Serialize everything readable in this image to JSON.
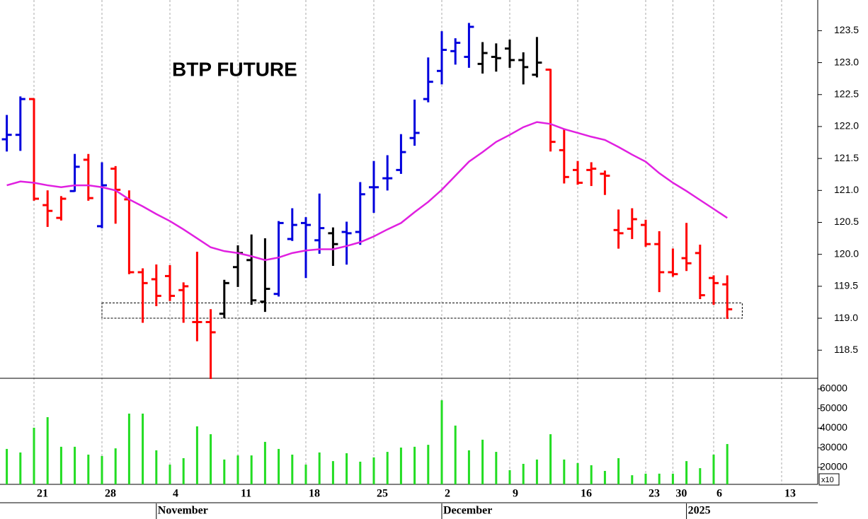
{
  "chart_data": [
    {
      "type": "ohlc",
      "title": "BTP FUTURE",
      "categories": [
        null,
        null,
        "21",
        null,
        null,
        null,
        null,
        "28",
        null,
        null,
        null,
        null,
        "4",
        null,
        null,
        null,
        null,
        "11",
        null,
        null,
        null,
        null,
        "18",
        null,
        null,
        null,
        null,
        "25",
        null,
        null,
        null,
        null,
        "2",
        null,
        null,
        null,
        null,
        "9",
        null,
        null,
        null,
        null,
        "16",
        null,
        null,
        null,
        null,
        "23",
        null,
        "30",
        null,
        null,
        "6",
        null,
        null,
        null,
        null,
        "13"
      ],
      "month_labels": [
        "November",
        "December",
        "2025"
      ],
      "open": [
        121.8,
        121.87,
        122.43,
        120.77,
        120.57,
        120.99,
        121.48,
        120.44,
        121.34,
        120.86,
        119.72,
        119.61,
        119.66,
        119.44,
        118.94,
        118.94,
        119.07,
        119.8,
        119.91,
        119.26,
        119.38,
        120.24,
        120.49,
        120.22,
        120.33,
        120.35,
        120.35,
        121.05,
        121.19,
        121.32,
        121.82,
        122.43,
        122.87,
        123.18,
        123.09,
        122.98,
        123.09,
        123.22,
        123.04,
        122.81,
        122.89,
        121.63,
        121.32,
        121.32,
        121.26,
        120.38,
        120.4,
        120.46,
        120.16,
        119.72,
        119.94,
        120.02,
        119.63,
        119.53,
        null,
        null,
        null,
        null
      ],
      "high": [
        122.17,
        122.46,
        122.43,
        120.99,
        120.9,
        121.56,
        121.56,
        121.43,
        121.37,
        120.99,
        119.77,
        119.83,
        119.82,
        119.55,
        120.03,
        119.13,
        119.59,
        120.13,
        120.3,
        120.24,
        120.51,
        120.71,
        120.57,
        120.94,
        120.41,
        120.5,
        121.12,
        121.45,
        121.54,
        121.87,
        122.41,
        123.07,
        123.48,
        123.37,
        123.61,
        123.31,
        123.29,
        123.35,
        123.15,
        123.39,
        122.89,
        121.96,
        121.45,
        121.43,
        121.3,
        120.69,
        120.71,
        120.53,
        120.35,
        120.08,
        120.48,
        120.14,
        119.66,
        119.66,
        null,
        null,
        null,
        null
      ],
      "low": [
        121.62,
        121.63,
        120.85,
        120.44,
        120.54,
        120.99,
        120.85,
        120.42,
        120.49,
        119.7,
        118.94,
        119.2,
        119.28,
        118.94,
        118.65,
        118.06,
        119.01,
        119.5,
        119.22,
        119.11,
        119.35,
        120.22,
        119.64,
        120.02,
        119.83,
        119.85,
        120.16,
        120.66,
        121.01,
        121.27,
        121.71,
        122.39,
        122.67,
        122.98,
        122.93,
        122.84,
        122.87,
        122.93,
        122.67,
        122.78,
        121.62,
        121.12,
        121.1,
        121.08,
        120.94,
        120.1,
        120.25,
        120.13,
        119.42,
        119.66,
        119.75,
        119.31,
        119.22,
        119.0,
        null,
        null,
        null,
        null
      ],
      "close": [
        121.87,
        122.43,
        120.87,
        120.68,
        120.87,
        121.37,
        120.88,
        121.08,
        121.01,
        119.72,
        119.55,
        119.35,
        119.35,
        119.5,
        118.94,
        118.78,
        119.55,
        120.02,
        119.28,
        119.46,
        120.49,
        120.46,
        120.46,
        120.41,
        120.16,
        120.33,
        120.94,
        121.05,
        121.19,
        121.6,
        121.9,
        122.7,
        123.2,
        123.31,
        123.56,
        123.15,
        123.07,
        123.04,
        122.93,
        123.0,
        121.76,
        121.21,
        121.12,
        121.34,
        121.23,
        120.33,
        120.55,
        120.16,
        119.72,
        119.69,
        119.86,
        119.36,
        119.55,
        119.14,
        null,
        null,
        null,
        null
      ],
      "bar_colors": [
        "#0000dd",
        "#0000dd",
        "#ff0000",
        "#ff0000",
        "#ff0000",
        "#0000dd",
        "#ff0000",
        "#0000dd",
        "#ff0000",
        "#ff0000",
        "#ff0000",
        "#ff0000",
        "#ff0000",
        "#ff0000",
        "#ff0000",
        "#ff0000",
        "#000000",
        "#000000",
        "#000000",
        "#000000",
        "#0000dd",
        "#0000dd",
        "#0000dd",
        "#0000dd",
        "#000000",
        "#0000dd",
        "#0000dd",
        "#0000dd",
        "#0000dd",
        "#0000dd",
        "#0000dd",
        "#0000dd",
        "#0000dd",
        "#0000dd",
        "#0000dd",
        "#000000",
        "#000000",
        "#000000",
        "#000000",
        "#000000",
        "#ff0000",
        "#ff0000",
        "#ff0000",
        "#ff0000",
        "#ff0000",
        "#ff0000",
        "#ff0000",
        "#ff0000",
        "#ff0000",
        "#ff0000",
        "#ff0000",
        "#ff0000",
        "#ff0000",
        "#ff0000",
        null,
        null,
        null,
        null
      ],
      "moving_average": {
        "color": "#e020e0",
        "values": [
          121.08,
          121.14,
          121.12,
          121.08,
          121.05,
          121.08,
          121.08,
          121.05,
          121.0,
          120.86,
          120.75,
          120.63,
          120.52,
          120.39,
          120.25,
          120.11,
          120.05,
          120.02,
          119.97,
          119.91,
          119.95,
          120.02,
          120.06,
          120.08,
          120.08,
          120.13,
          120.19,
          120.28,
          120.39,
          120.49,
          120.66,
          120.82,
          121.01,
          121.23,
          121.45,
          121.6,
          121.76,
          121.87,
          121.99,
          122.07,
          122.04,
          121.96,
          121.9,
          121.84,
          121.79,
          121.68,
          121.56,
          121.45,
          121.27,
          121.12,
          120.99,
          120.85,
          120.71,
          120.57,
          null,
          null,
          null,
          null
        ]
      },
      "zone": [
        119.0,
        119.24
      ],
      "ylim": [
        118.06,
        123.98
      ],
      "yticks": [
        118.5,
        {
          "value": 119,
          "label": "119.0"
        },
        119.5,
        {
          "value": 120,
          "label": "120.0"
        },
        120.5,
        {
          "value": 121,
          "label": "121.0"
        },
        121.5,
        {
          "value": 122,
          "label": "122.0"
        },
        122.5,
        {
          "value": 123,
          "label": "123.0"
        },
        123.5
      ],
      "grid": true
    },
    {
      "type": "bar",
      "color": "#22dd22",
      "values": [
        29400,
        27600,
        40200,
        45600,
        30500,
        30500,
        26500,
        25800,
        29700,
        47400,
        47400,
        28700,
        21400,
        24700,
        40900,
        36900,
        24000,
        26100,
        26100,
        33000,
        29400,
        26500,
        21400,
        27600,
        23200,
        27200,
        22900,
        25100,
        27900,
        30100,
        30500,
        31500,
        54200,
        41300,
        28700,
        34100,
        27900,
        18600,
        21800,
        24000,
        36900,
        24000,
        22200,
        21100,
        18200,
        24700,
        16000,
        16800,
        16800,
        16800,
        23200,
        19600,
        26500,
        31900,
        null,
        null,
        null,
        null
      ],
      "ylim": [
        11350,
        65400
      ],
      "yticks": [
        20000,
        30000,
        40000,
        50000,
        60000
      ],
      "axis_note": "x10"
    }
  ]
}
